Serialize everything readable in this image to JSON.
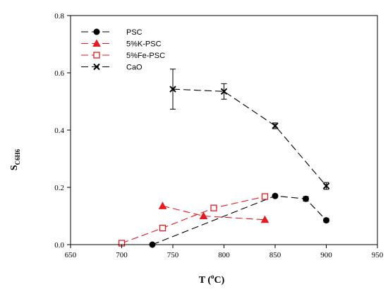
{
  "chart_data": {
    "type": "scatter",
    "xlabel": {
      "main": "T (",
      "sup": "o",
      "tail": "C)"
    },
    "ylabel": {
      "main": "S",
      "sub": "C6H6"
    },
    "xlim": [
      650,
      950
    ],
    "ylim": [
      0,
      0.8
    ],
    "xticks": [
      650,
      700,
      750,
      800,
      850,
      900,
      950
    ],
    "yticks": [
      0.0,
      0.2,
      0.4,
      0.6,
      0.8
    ],
    "xtick_labels": [
      "650",
      "700",
      "750",
      "800",
      "850",
      "900",
      "950"
    ],
    "ytick_labels": [
      "0.0",
      "0.2",
      "0.4",
      "0.6",
      "0.8"
    ],
    "legend_position": "top-left",
    "grid": false,
    "series": [
      {
        "name": "PSC",
        "color": "#000000",
        "marker": "circle-filled",
        "dash": "long",
        "x": [
          730,
          850,
          880,
          900
        ],
        "y": [
          0.0,
          0.17,
          0.16,
          0.085
        ],
        "err": [
          0,
          0.005,
          0.008,
          0.006
        ]
      },
      {
        "name": "5%K-PSC",
        "color": "#e8191f",
        "marker": "triangle-filled",
        "dash": "long",
        "x": [
          740,
          780,
          840
        ],
        "y": [
          0.135,
          0.1,
          0.087
        ],
        "err": [
          0,
          0,
          0
        ]
      },
      {
        "name": "5%Fe-PSC",
        "color": "#e8191f",
        "marker": "square-open",
        "dash": "long",
        "x": [
          700,
          740,
          790,
          840
        ],
        "y": [
          0.005,
          0.058,
          0.128,
          0.168
        ],
        "err": [
          0,
          0,
          0,
          0
        ]
      },
      {
        "name": "CaO",
        "color": "#000000",
        "marker": "x",
        "dash": "long",
        "x": [
          750,
          800,
          850,
          900
        ],
        "y": [
          0.543,
          0.535,
          0.415,
          0.205
        ],
        "err": [
          0.07,
          0.027,
          0.01,
          0.012
        ]
      }
    ]
  }
}
